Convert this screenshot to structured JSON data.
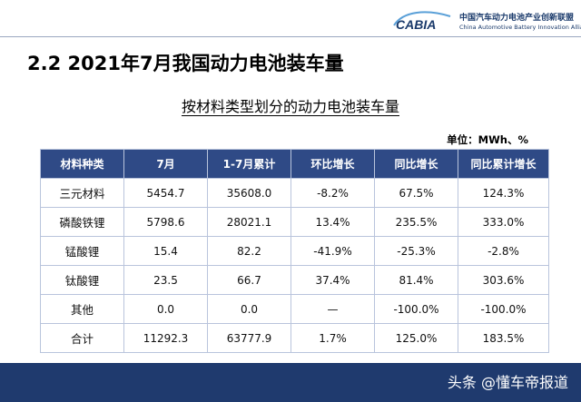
{
  "header": {
    "logo_text": "CABIA",
    "org_name_cn": "中国汽车动力电池产业创新联盟",
    "org_name_en": "China Automotive Battery Innovation Alliance"
  },
  "slide": {
    "title": "2.2 2021年7月我国动力电池装车量",
    "table_title": "按材料类型划分的动力电池装车量",
    "unit": "单位：MWh、%"
  },
  "table": {
    "columns": [
      "材料种类",
      "7月",
      "1-7月累计",
      "环比增长",
      "同比增长",
      "同比累计增长"
    ],
    "rows": [
      [
        "三元材料",
        "5454.7",
        "35608.0",
        "-8.2%",
        "67.5%",
        "124.3%"
      ],
      [
        "磷酸铁锂",
        "5798.6",
        "28021.1",
        "13.4%",
        "235.5%",
        "333.0%"
      ],
      [
        "锰酸锂",
        "15.4",
        "82.2",
        "-41.9%",
        "-25.3%",
        "-2.8%"
      ],
      [
        "钛酸锂",
        "23.5",
        "66.7",
        "37.4%",
        "81.4%",
        "303.6%"
      ],
      [
        "其他",
        "0.0",
        "0.0",
        "—",
        "-100.0%",
        "-100.0%"
      ],
      [
        "合计",
        "11292.3",
        "63777.9",
        "1.7%",
        "125.0%",
        "183.5%"
      ]
    ]
  },
  "footer": {
    "watermark": "头条 @懂车帝报道"
  },
  "colors": {
    "header_fill": "#2f4a86",
    "footer_fill": "#1f3a6e",
    "logo_color": "#1a3a6b"
  }
}
